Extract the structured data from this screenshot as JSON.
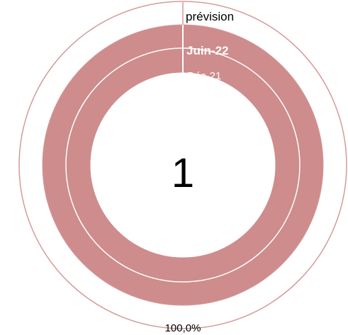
{
  "chart_data": {
    "type": "doughnut",
    "rings": [
      {
        "name": "prévision",
        "value": 100.0,
        "color": "#ffffff"
      },
      {
        "name": "Juin-22",
        "value": 100.0,
        "color": "#ce8c8d"
      },
      {
        "name": "Déc-21",
        "value": 100.0,
        "color": "#ce8c8d"
      }
    ],
    "center_value": "1",
    "percent_label": "100,0%",
    "outline_color": "#d49a9b",
    "background": "#ffffff"
  }
}
